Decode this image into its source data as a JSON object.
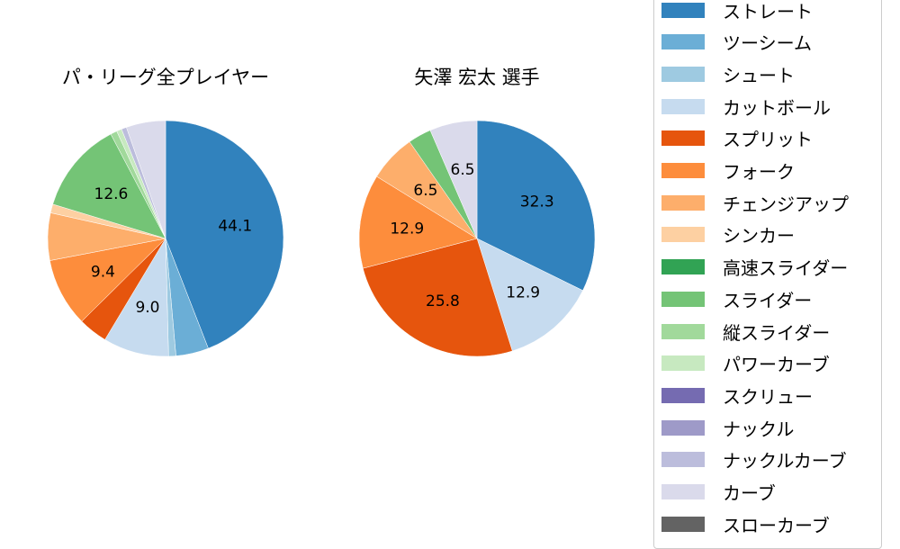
{
  "chart_data": [
    {
      "type": "pie",
      "title": "パ・リーグ全プレイヤー",
      "categories": [
        "ストレート",
        "ツーシーム",
        "シュート",
        "カットボール",
        "スプリット",
        "フォーク",
        "チェンジアップ",
        "シンカー",
        "スライダー",
        "縦スライダー",
        "パワーカーブ",
        "ナックルカーブ",
        "カーブ"
      ],
      "values": [
        44.1,
        4.5,
        1.0,
        9.0,
        4.0,
        9.4,
        6.5,
        1.2,
        12.6,
        0.9,
        0.7,
        0.7,
        5.4
      ],
      "labels_shown": [
        "44.1",
        "9.0",
        "9.4",
        "12.6"
      ],
      "start_angle": "top, clockwise"
    },
    {
      "type": "pie",
      "title": "矢澤 宏太  選手",
      "categories": [
        "ストレート",
        "カットボール",
        "スプリット",
        "フォーク",
        "チェンジアップ",
        "スライダー",
        "カーブ"
      ],
      "values": [
        32.3,
        12.9,
        25.8,
        12.9,
        6.5,
        3.2,
        6.5
      ],
      "labels_shown": [
        "32.3",
        "12.9",
        "25.8",
        "12.9",
        "6.5",
        "6.5"
      ],
      "start_angle": "top, clockwise"
    }
  ],
  "titles": {
    "left": "パ・リーグ全プレイヤー",
    "right": "矢澤 宏太  選手"
  },
  "colors": {
    "ストレート": "#3182bd",
    "ツーシーム": "#6baed6",
    "シュート": "#9ecae1",
    "カットボール": "#c6dbef",
    "スプリット": "#e6550d",
    "フォーク": "#fd8d3c",
    "チェンジアップ": "#fdae6b",
    "シンカー": "#fdd0a2",
    "高速スライダー": "#31a354",
    "スライダー": "#74c476",
    "縦スライダー": "#a1d99b",
    "パワーカーブ": "#c7e9c0",
    "スクリュー": "#756bb1",
    "ナックル": "#9e9ac8",
    "ナックルカーブ": "#bcbddc",
    "カーブ": "#dadaeb",
    "スローカーブ": "#636363"
  },
  "legend": [
    {
      "label": "ストレート",
      "color": "#3182bd"
    },
    {
      "label": "ツーシーム",
      "color": "#6baed6"
    },
    {
      "label": "シュート",
      "color": "#9ecae1"
    },
    {
      "label": "カットボール",
      "color": "#c6dbef"
    },
    {
      "label": "スプリット",
      "color": "#e6550d"
    },
    {
      "label": "フォーク",
      "color": "#fd8d3c"
    },
    {
      "label": "チェンジアップ",
      "color": "#fdae6b"
    },
    {
      "label": "シンカー",
      "color": "#fdd0a2"
    },
    {
      "label": "高速スライダー",
      "color": "#31a354"
    },
    {
      "label": "スライダー",
      "color": "#74c476"
    },
    {
      "label": "縦スライダー",
      "color": "#a1d99b"
    },
    {
      "label": "パワーカーブ",
      "color": "#c7e9c0"
    },
    {
      "label": "スクリュー",
      "color": "#756bb1"
    },
    {
      "label": "ナックル",
      "color": "#9e9ac8"
    },
    {
      "label": "ナックルカーブ",
      "color": "#bcbddc"
    },
    {
      "label": "カーブ",
      "color": "#dadaeb"
    },
    {
      "label": "スローカーブ",
      "color": "#636363"
    }
  ]
}
